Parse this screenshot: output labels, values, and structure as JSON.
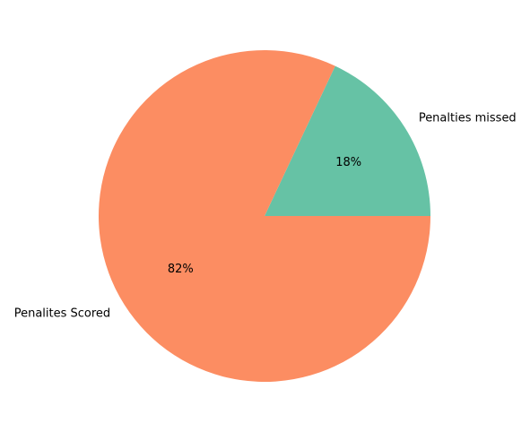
{
  "chart_data": {
    "type": "pie",
    "labels": [
      "Penalties missed",
      "Penalites Scored"
    ],
    "values": [
      18,
      82
    ],
    "pct_labels": [
      "18%",
      "82%"
    ],
    "colors": [
      "#66c2a5",
      "#fc8d62"
    ],
    "start_angle_deg": 0,
    "direction": "counterclockwise"
  }
}
